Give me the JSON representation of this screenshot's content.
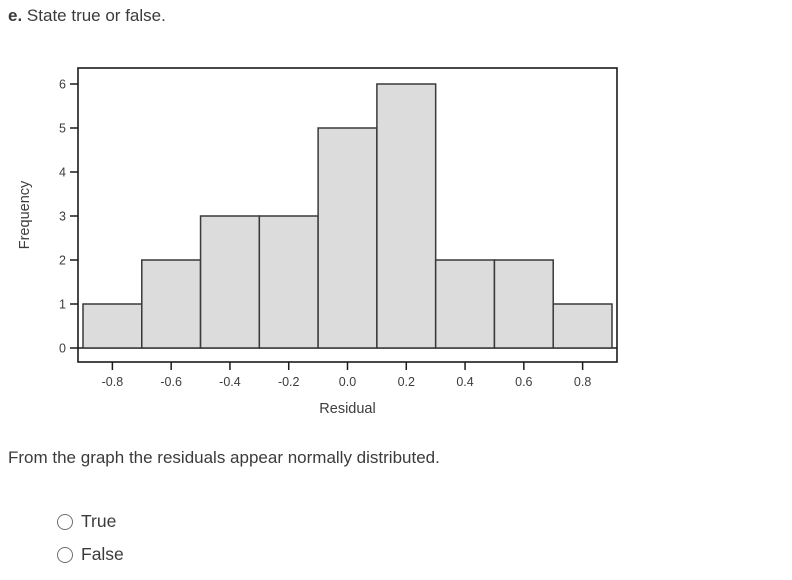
{
  "prompt": {
    "label": "e.",
    "text": "State true or false."
  },
  "statement": "From the graph the residuals appear normally distributed.",
  "options": [
    {
      "label": "True",
      "selected": false
    },
    {
      "label": "False",
      "selected": false
    }
  ],
  "chart_data": {
    "type": "bar",
    "subtype": "histogram",
    "categories": [
      "-0.8",
      "-0.6",
      "-0.4",
      "-0.2",
      "0.0",
      "0.2",
      "0.4",
      "0.6",
      "0.8"
    ],
    "values": [
      1,
      2,
      3,
      3,
      5,
      6,
      2,
      2,
      1
    ],
    "title": "",
    "xlabel": "Residual",
    "ylabel": "Frequency",
    "ylim": [
      0,
      6
    ],
    "yticks": [
      0,
      1,
      2,
      3,
      4,
      5,
      6
    ],
    "bin_width": 0.2,
    "grid": false,
    "legend": false,
    "colors": {
      "bar_fill": "#dcdcdc",
      "bar_border": "#3a3a3a",
      "axis": "#1a1a1a",
      "text": "#3d3d3d",
      "plot_background": "#ffffff"
    }
  }
}
